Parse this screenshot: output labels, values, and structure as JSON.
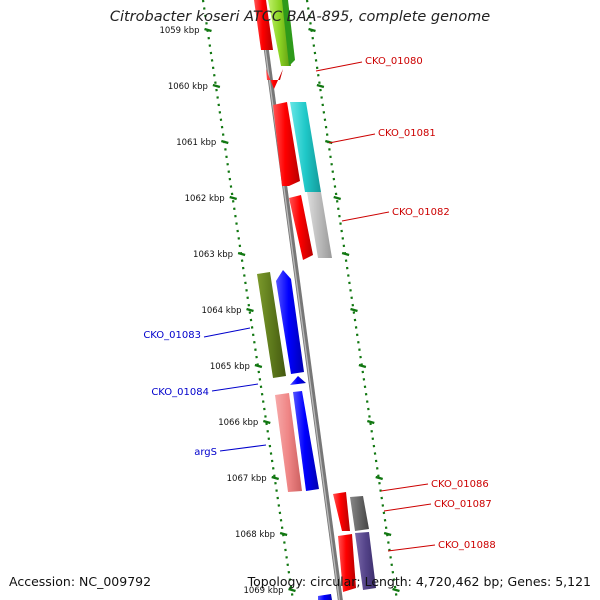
{
  "title": "Citrobacter koseri ATCC BAA-895, complete genome",
  "footer": {
    "accession": "Accession: NC_009792",
    "topology": "Topology: circular; Length: 4,720,462 bp; Genes: 5,121"
  },
  "ticks": [
    {
      "label": "1059 kbp",
      "kbp": 1059
    },
    {
      "label": "1060 kbp",
      "kbp": 1060
    },
    {
      "label": "1061 kbp",
      "kbp": 1061
    },
    {
      "label": "1062 kbp",
      "kbp": 1062
    },
    {
      "label": "1063 kbp",
      "kbp": 1063
    },
    {
      "label": "1064 kbp",
      "kbp": 1064
    },
    {
      "label": "1065 kbp",
      "kbp": 1065
    },
    {
      "label": "1066 kbp",
      "kbp": 1066
    },
    {
      "label": "1067 kbp",
      "kbp": 1067
    },
    {
      "label": "1068 kbp",
      "kbp": 1068
    },
    {
      "label": "1069 kbp",
      "kbp": 1069
    }
  ],
  "genes_forward": [
    {
      "name": "CKO_01080",
      "color": "#cc0000"
    },
    {
      "name": "CKO_01081",
      "color": "#cc0000"
    },
    {
      "name": "CKO_01082",
      "color": "#cc0000"
    },
    {
      "name": "CKO_01086",
      "color": "#cc0000"
    },
    {
      "name": "CKO_01087",
      "color": "#cc0000"
    },
    {
      "name": "CKO_01088",
      "color": "#cc0000"
    }
  ],
  "genes_reverse": [
    {
      "name": "CKO_01083",
      "color": "#0000cc"
    },
    {
      "name": "CKO_01084",
      "color": "#0000cc"
    },
    {
      "name": "argS",
      "color": "#0000cc"
    }
  ],
  "colors": {
    "backbone": "#888888",
    "tick_dots": "#117711",
    "forward_cds": "#ff0000",
    "reverse_cds": "#0000ff"
  }
}
